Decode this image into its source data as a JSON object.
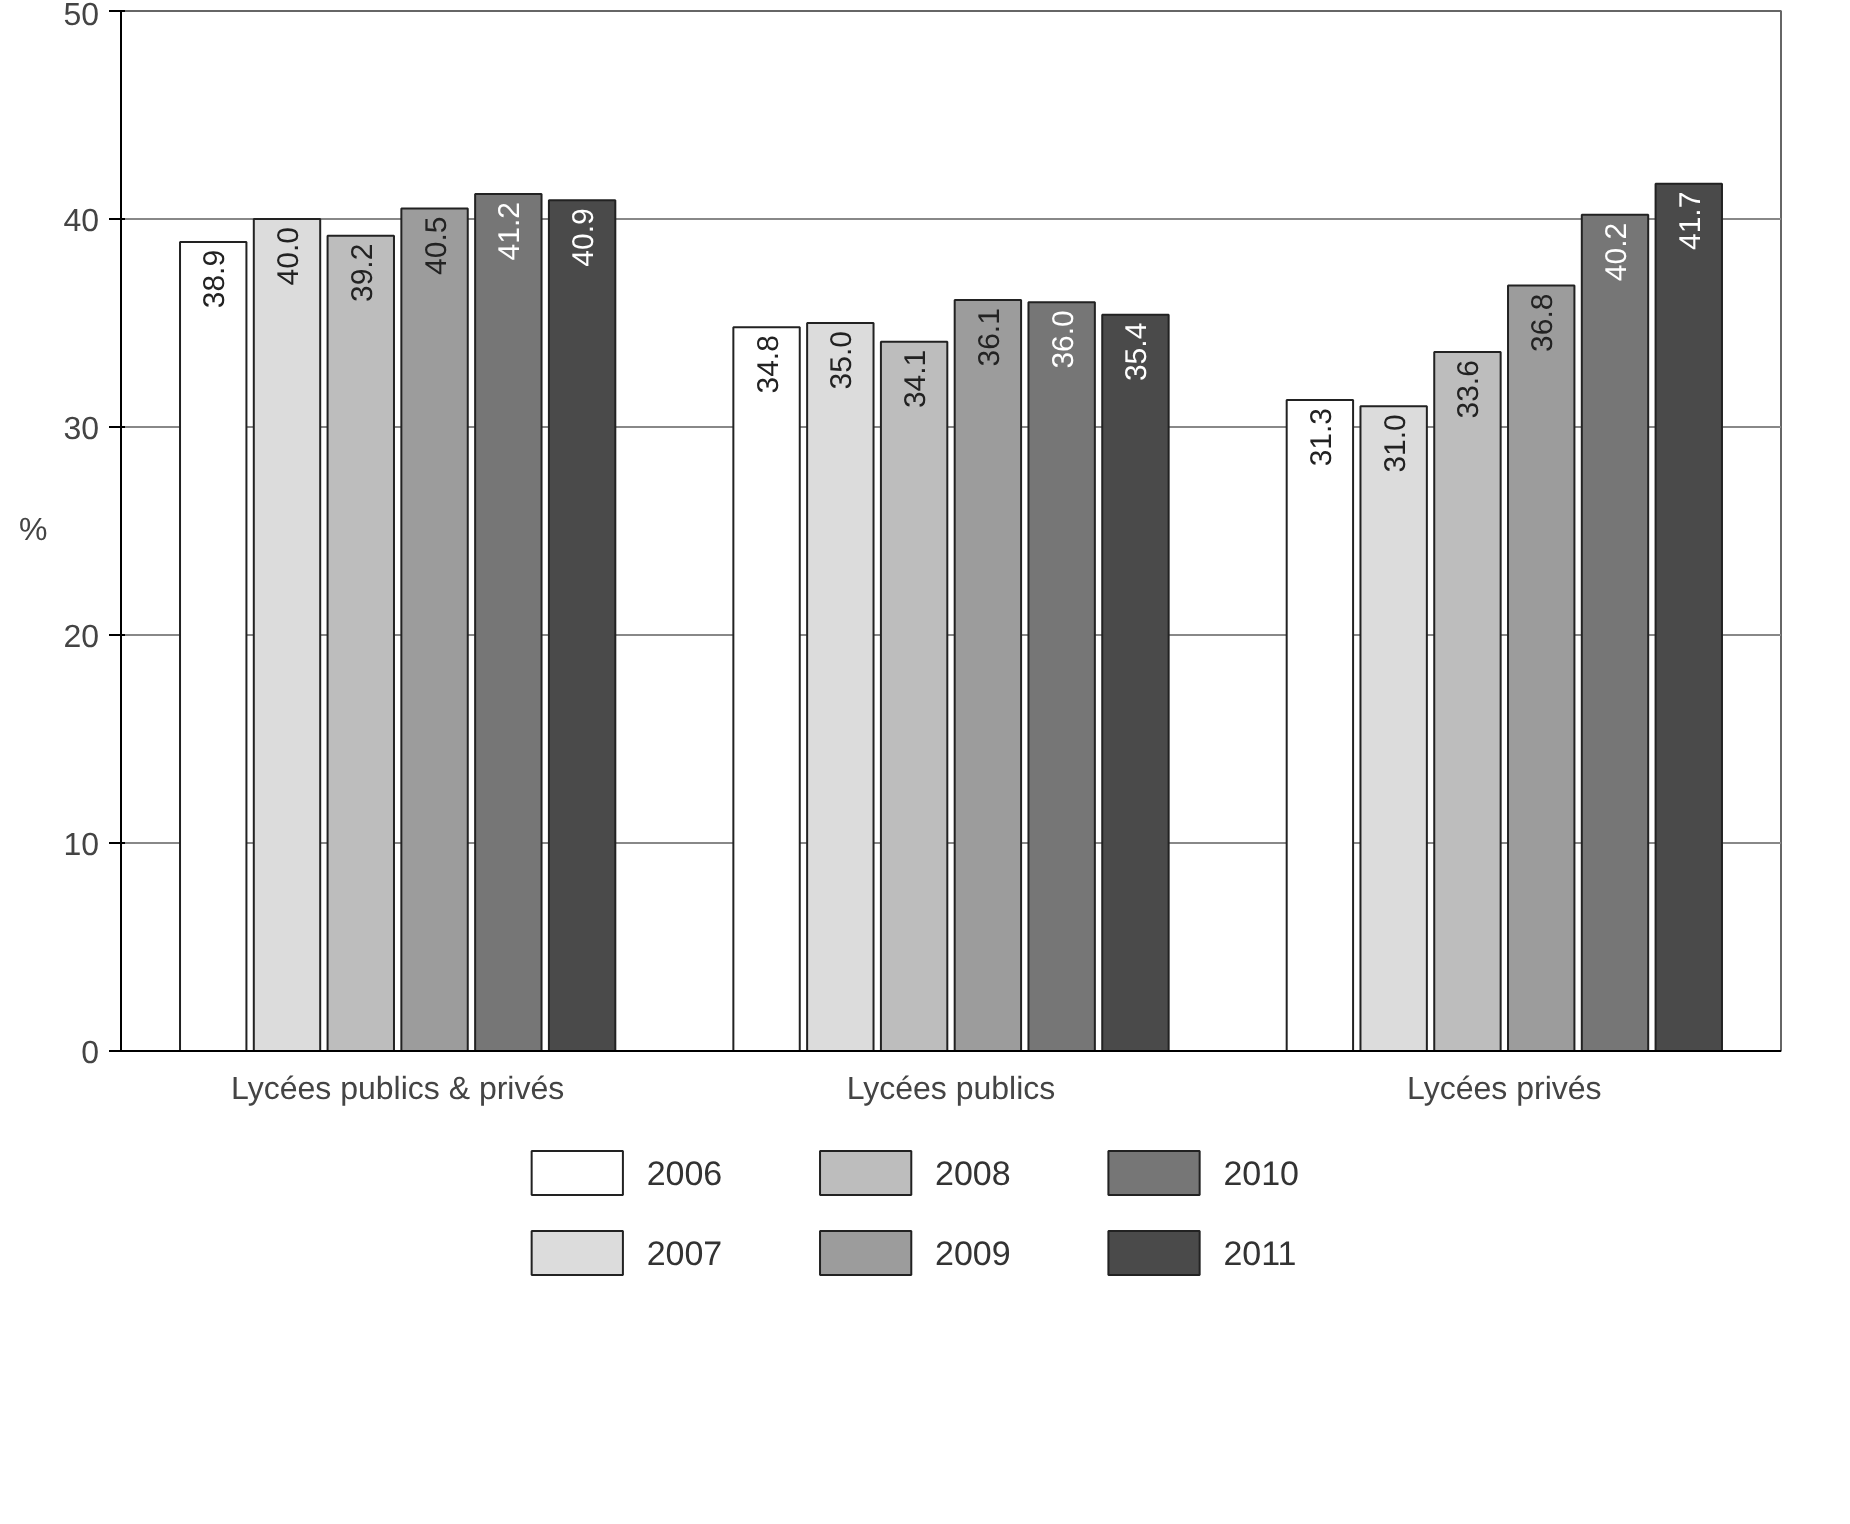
{
  "chart_data": {
    "type": "bar",
    "ylabel": "%",
    "categories": [
      "Lycées publics & privés",
      "Lycées publics",
      "Lycées privés"
    ],
    "series": [
      {
        "name": "2006",
        "color": "#ffffff",
        "values": [
          38.9,
          34.8,
          31.3
        ],
        "value_labels": [
          "38.9",
          "34.8",
          "31.3"
        ]
      },
      {
        "name": "2007",
        "color": "#dcdcdc",
        "values": [
          40.0,
          35.0,
          31.0
        ],
        "value_labels": [
          "40.0",
          "35.0",
          "31.0"
        ]
      },
      {
        "name": "2008",
        "color": "#bdbdbd",
        "values": [
          39.2,
          34.1,
          33.6
        ],
        "value_labels": [
          "39.2",
          "34.1",
          "33.6"
        ]
      },
      {
        "name": "2009",
        "color": "#9c9c9c",
        "values": [
          40.5,
          36.1,
          36.8
        ],
        "value_labels": [
          "40.5",
          "36.1",
          "36.8"
        ]
      },
      {
        "name": "2010",
        "color": "#767676",
        "values": [
          41.2,
          36.0,
          40.2
        ],
        "value_labels": [
          "41.2",
          "36.0",
          "40.2"
        ]
      },
      {
        "name": "2011",
        "color": "#4a4a4a",
        "values": [
          40.9,
          35.4,
          41.7
        ],
        "value_labels": [
          "40.9",
          "35.4",
          "41.7"
        ]
      }
    ],
    "ylim": [
      0,
      50
    ],
    "yticks": [
      0,
      10,
      20,
      30,
      40,
      50
    ],
    "grid": "y",
    "legend": "bottom",
    "data_labels": true
  }
}
